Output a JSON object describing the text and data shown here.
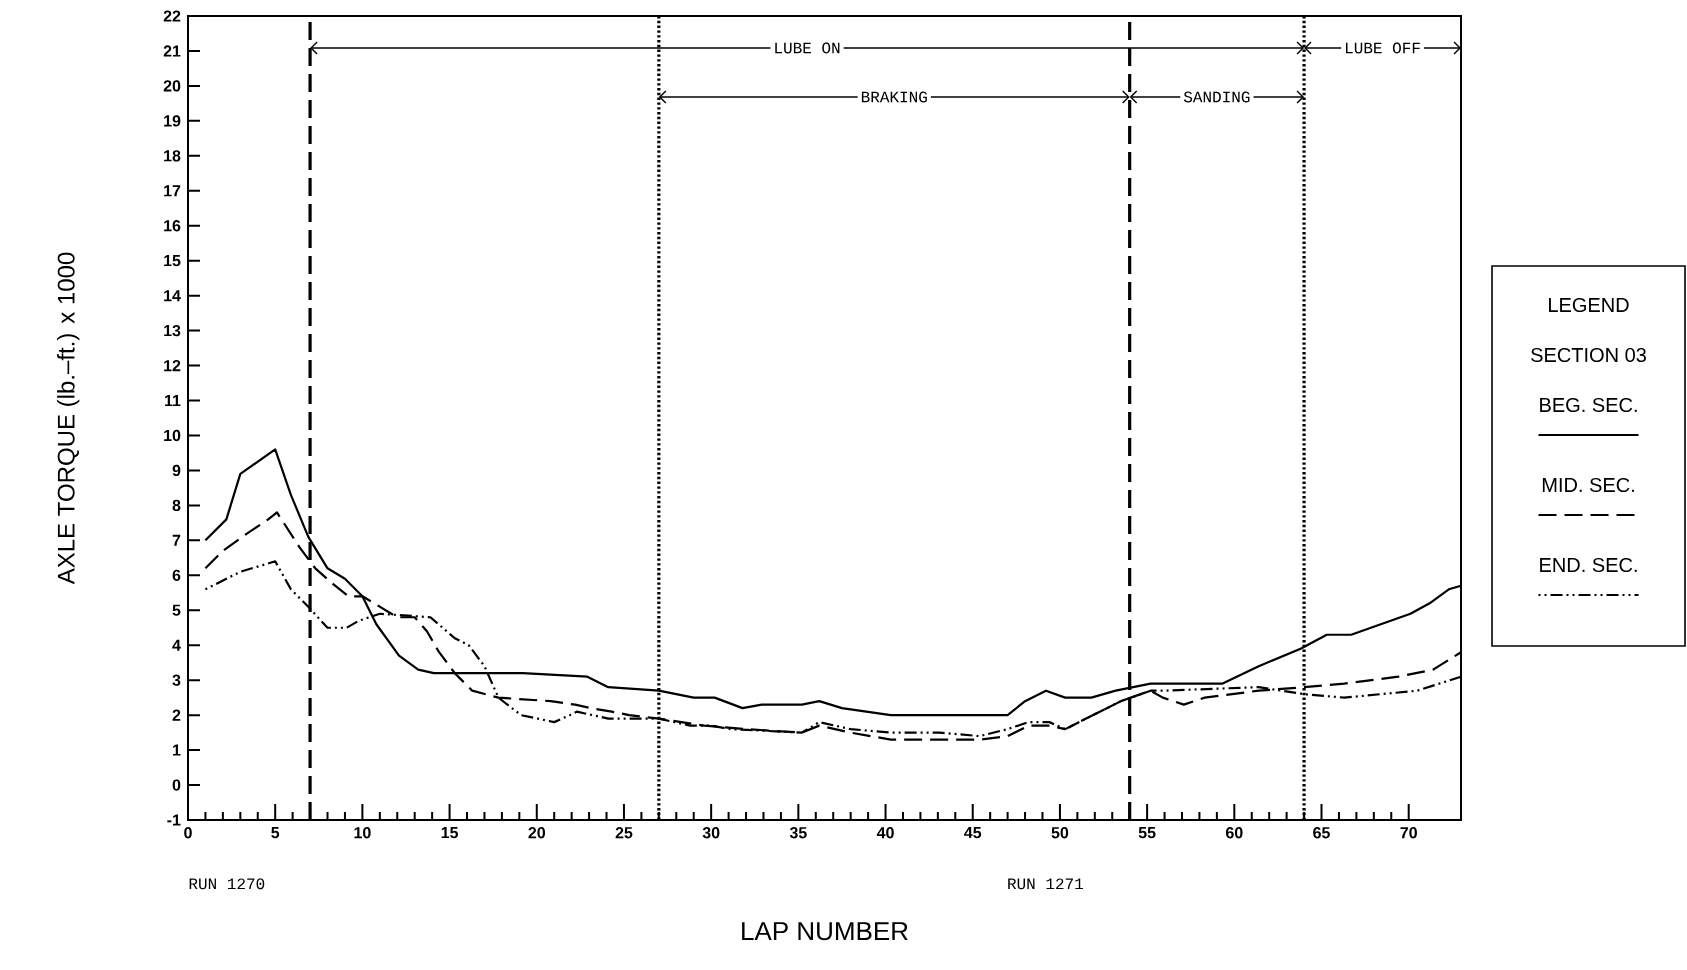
{
  "chart_data": {
    "type": "line",
    "xlabel": "LAP NUMBER",
    "ylabel": "AXLE TORQUE (lb.–ft.) x 1000",
    "legend_title": "LEGEND",
    "legend": "right",
    "xlim": [
      0,
      73
    ],
    "ylim": [
      -1,
      22
    ],
    "xticks": [
      0,
      5,
      10,
      15,
      20,
      25,
      30,
      35,
      40,
      45,
      50,
      55,
      60,
      65,
      70
    ],
    "yticks": [
      -1,
      0,
      1,
      2,
      3,
      4,
      5,
      6,
      7,
      8,
      9,
      10,
      11,
      12,
      13,
      14,
      15,
      16,
      17,
      18,
      19,
      20,
      21,
      22
    ],
    "series": [
      {
        "name": "BEG. SEC.",
        "color": "#000000",
        "line_style": "solid",
        "x": [
          1,
          2.2,
          3,
          5,
          5.9,
          6.9,
          8,
          9,
          10,
          10.8,
          12.1,
          13.2,
          14.1,
          19.2,
          22.9,
          24.1,
          27,
          29,
          30.2,
          31.8,
          32.9,
          35.2,
          36.2,
          37.5,
          40.3,
          43.1,
          47,
          48,
          49.2,
          50.3,
          51.8,
          53.2,
          55.2,
          59.3,
          61.4,
          63.8,
          65.3,
          66.7,
          68.4,
          70.1,
          71.2,
          72.3,
          73
        ],
        "values": [
          7.0,
          7.6,
          8.9,
          9.6,
          8.3,
          7.1,
          6.2,
          5.9,
          5.4,
          4.6,
          3.7,
          3.3,
          3.2,
          3.2,
          3.1,
          2.8,
          2.7,
          2.5,
          2.5,
          2.2,
          2.3,
          2.3,
          2.4,
          2.2,
          2.0,
          2.0,
          2.0,
          2.4,
          2.7,
          2.5,
          2.5,
          2.7,
          2.9,
          2.9,
          3.4,
          3.9,
          4.3,
          4.3,
          4.6,
          4.9,
          5.2,
          5.6,
          5.7
        ]
      },
      {
        "name": "MID. SEC.",
        "color": "#000000",
        "line_style": "dashed",
        "x": [
          1,
          2,
          3.4,
          4.6,
          5.1,
          6.4,
          7.3,
          8.2,
          9.2,
          10,
          11,
          12,
          13,
          13.7,
          14.4,
          15.3,
          16.3,
          17.8,
          20.8,
          22.2,
          23.1,
          24.3,
          25.3,
          27,
          29.6,
          32,
          35.2,
          36.2,
          38,
          40.3,
          43.1,
          45.4,
          47,
          48.2,
          49.4,
          50.3,
          53.5,
          55.2,
          55.9,
          57.1,
          58.3,
          61.4,
          64,
          66.3,
          69.4,
          71.4,
          73
        ],
        "values": [
          6.2,
          6.7,
          7.2,
          7.6,
          7.8,
          6.8,
          6.2,
          5.8,
          5.4,
          5.4,
          5.1,
          4.8,
          4.8,
          4.4,
          3.8,
          3.2,
          2.7,
          2.5,
          2.4,
          2.3,
          2.2,
          2.1,
          2.0,
          1.9,
          1.7,
          1.6,
          1.5,
          1.7,
          1.5,
          1.3,
          1.3,
          1.3,
          1.4,
          1.7,
          1.7,
          1.6,
          2.4,
          2.7,
          2.5,
          2.3,
          2.5,
          2.7,
          2.8,
          2.9,
          3.1,
          3.3,
          3.8
        ]
      },
      {
        "name": "END. SEC.",
        "color": "#000000",
        "line_style": "dashdotted",
        "x": [
          1,
          3,
          5,
          5.9,
          6.9,
          8,
          9.1,
          9.8,
          11,
          13.9,
          15.3,
          16.1,
          17,
          17.8,
          19.1,
          21,
          21.9,
          22.3,
          24.1,
          26.2,
          27,
          28.8,
          30,
          31.1,
          35.2,
          36.2,
          38,
          40.3,
          43.1,
          45.4,
          47,
          48.2,
          49.4,
          50.3,
          53.5,
          55.2,
          55.9,
          61.4,
          64,
          66.3,
          70.5,
          73
        ],
        "values": [
          5.6,
          6.1,
          6.4,
          5.6,
          5.1,
          4.5,
          4.5,
          4.7,
          4.9,
          4.8,
          4.2,
          4.0,
          3.4,
          2.5,
          2.0,
          1.8,
          2.0,
          2.1,
          1.9,
          1.9,
          1.9,
          1.7,
          1.7,
          1.6,
          1.5,
          1.8,
          1.6,
          1.5,
          1.5,
          1.4,
          1.6,
          1.8,
          1.8,
          1.6,
          2.4,
          2.7,
          2.7,
          2.8,
          2.6,
          2.5,
          2.7,
          3.1
        ]
      }
    ],
    "ref_lines": [
      {
        "axis": "x",
        "value": 7,
        "line_style": "dashed",
        "color": "#000000"
      },
      {
        "axis": "x",
        "value": 27,
        "line_style": "dotted",
        "color": "#000000"
      },
      {
        "axis": "x",
        "value": 54,
        "line_style": "dashed",
        "color": "#000000"
      },
      {
        "axis": "x",
        "value": 64,
        "line_style": "dotted",
        "color": "#000000"
      }
    ],
    "annotations": [
      "LUBE ON",
      "LUBE OFF",
      "BRAKING",
      "SANDING",
      "RUN 1270",
      "RUN 1271",
      "SECTION 03"
    ]
  }
}
